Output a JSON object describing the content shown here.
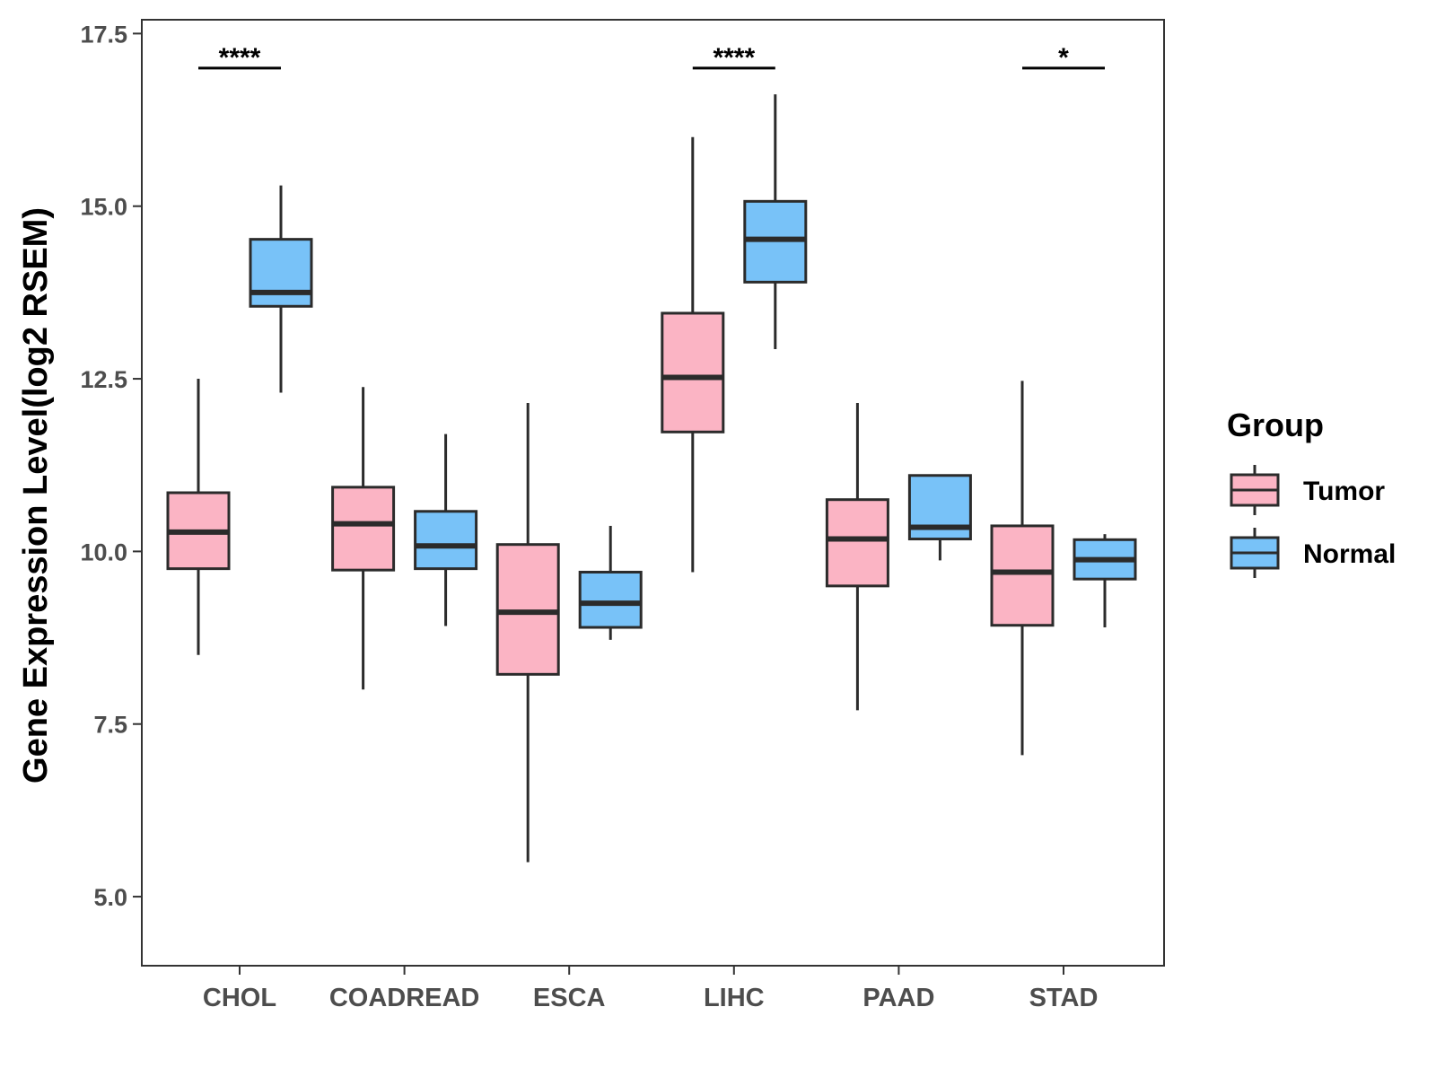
{
  "chart_data": {
    "type": "boxplot",
    "title": "",
    "xlabel": "",
    "ylabel": "Gene Expression Level(log2 RSEM)",
    "ylim": [
      4.0,
      17.7
    ],
    "yticks": [
      "5.0",
      "7.5",
      "10.0",
      "12.5",
      "15.0",
      "17.5"
    ],
    "ytick_values": [
      5.0,
      7.5,
      10.0,
      12.5,
      15.0,
      17.5
    ],
    "categories": [
      "CHOL",
      "COADREAD",
      "ESCA",
      "LIHC",
      "PAAD",
      "STAD"
    ],
    "legend": {
      "title": "Group",
      "position": "right",
      "entries": [
        {
          "name": "Tumor",
          "color": "#FBB4C4"
        },
        {
          "name": "Normal",
          "color": "#78C2F8"
        }
      ]
    },
    "series": [
      {
        "name": "Tumor",
        "color": "#FBB4C4",
        "boxes": [
          {
            "min": 8.5,
            "q1": 9.75,
            "median": 10.28,
            "q3": 10.85,
            "max": 12.5
          },
          {
            "min": 8.0,
            "q1": 9.73,
            "median": 10.4,
            "q3": 10.93,
            "max": 12.38
          },
          {
            "min": 5.5,
            "q1": 8.22,
            "median": 9.12,
            "q3": 10.1,
            "max": 12.15
          },
          {
            "min": 9.7,
            "q1": 11.73,
            "median": 12.52,
            "q3": 13.45,
            "max": 16.0
          },
          {
            "min": 7.7,
            "q1": 9.5,
            "median": 10.18,
            "q3": 10.75,
            "max": 12.15
          },
          {
            "min": 7.05,
            "q1": 8.93,
            "median": 9.7,
            "q3": 10.37,
            "max": 12.47
          }
        ]
      },
      {
        "name": "Normal",
        "color": "#78C2F8",
        "boxes": [
          {
            "min": 12.3,
            "q1": 13.55,
            "median": 13.75,
            "q3": 14.52,
            "max": 15.3
          },
          {
            "min": 8.92,
            "q1": 9.75,
            "median": 10.08,
            "q3": 10.58,
            "max": 11.7
          },
          {
            "min": 8.72,
            "q1": 8.9,
            "median": 9.25,
            "q3": 9.7,
            "max": 10.37
          },
          {
            "min": 12.93,
            "q1": 13.9,
            "median": 14.52,
            "q3": 15.07,
            "max": 16.62
          },
          {
            "min": 9.87,
            "q1": 10.18,
            "median": 10.35,
            "q3": 11.1,
            "max": 11.1
          },
          {
            "min": 8.9,
            "q1": 9.6,
            "median": 9.88,
            "q3": 10.17,
            "max": 10.25
          }
        ]
      }
    ],
    "annotations": [
      {
        "category": "CHOL",
        "label": "****",
        "y": 17.0
      },
      {
        "category": "LIHC",
        "label": "****",
        "y": 17.0
      },
      {
        "category": "STAD",
        "label": "*",
        "y": 17.0
      }
    ]
  }
}
